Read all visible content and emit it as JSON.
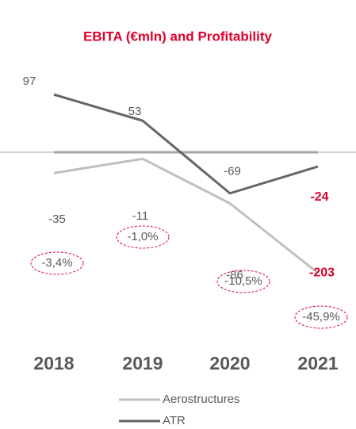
{
  "chart_data": {
    "type": "line",
    "title": "EBITA (€mln) and Profitability",
    "categories": [
      "2018",
      "2019",
      "2020",
      "2021"
    ],
    "series": [
      {
        "name": "Aerostructures",
        "color": "#bfbfbf",
        "values": [
          -35,
          -11,
          -86,
          -203
        ]
      },
      {
        "name": "ATR",
        "color": "#666666",
        "values": [
          97,
          53,
          -69,
          -24
        ]
      }
    ],
    "annotations": [
      "-3,4%",
      "-1,0%",
      "-10,5%",
      "-45,9%"
    ],
    "ylim": [
      -250,
      150
    ],
    "highlight_color": "#e0002a"
  }
}
